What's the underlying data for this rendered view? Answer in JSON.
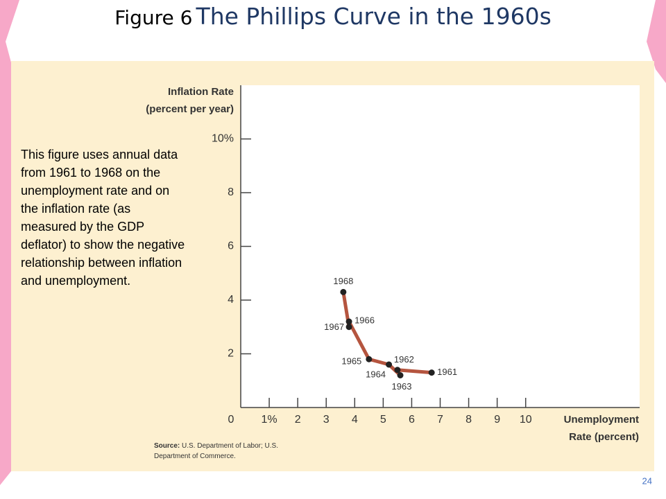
{
  "title_prefix": "Figure 6",
  "title": "The Phillips Curve in the 1960s",
  "description": "This figure uses annual data from 1961 to 1968 on the unemployment rate and on the inflation rate (as measured by the GDP deflator) to show the negative relationship between inflation and unemployment.",
  "page_number": "24",
  "chart_data": {
    "type": "line",
    "ylabel": [
      "Inflation Rate",
      "(percent per year)"
    ],
    "xlabel": [
      "Unemployment",
      "Rate (percent)"
    ],
    "source_label": "Source:",
    "source": "U.S. Department of Labor; U.S. Department of Commerce.",
    "x": [
      6.7,
      5.5,
      5.6,
      5.2,
      4.5,
      3.8,
      3.8,
      3.6
    ],
    "series": [
      {
        "color": "#b5553f",
        "values": [
          1.3,
          1.4,
          1.2,
          1.6,
          1.8,
          3.2,
          3.0,
          4.3
        ],
        "point_labels": [
          "1961",
          "1962",
          "1963",
          "1964",
          "1965",
          "1966",
          "1967",
          "1968"
        ]
      }
    ],
    "xlim": [
      0,
      14
    ],
    "ylim": [
      0,
      12
    ],
    "xticks": [
      0,
      {
        "value": 1,
        "label": "1%"
      },
      2,
      3,
      4,
      5,
      6,
      7,
      8,
      9,
      10
    ],
    "yticks": [
      2,
      4,
      6,
      8,
      {
        "value": 10,
        "label": "10%"
      }
    ]
  }
}
